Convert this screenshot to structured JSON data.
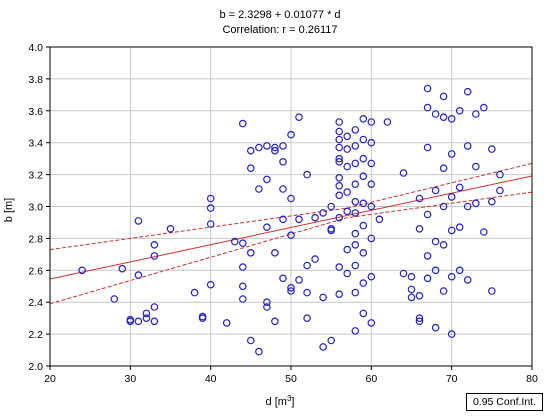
{
  "chart_data": {
    "type": "scatter",
    "title_lines": [
      "b = 2.3298 + 0.01077 * d",
      "Correlation: r = 0.26117"
    ],
    "xlabel": "d [m",
    "xlabel_sup": "3",
    "xlabel_end": "]",
    "ylabel": "b [m]",
    "xlim": [
      20,
      80
    ],
    "ylim": [
      2.0,
      4.0
    ],
    "xticks": [
      "20",
      "30",
      "40",
      "50",
      "60",
      "70",
      "80"
    ],
    "yticks": [
      "2.0",
      "2.2",
      "2.4",
      "2.6",
      "2.8",
      "3.0",
      "3.2",
      "3.4",
      "3.6",
      "3.8",
      "4.0"
    ],
    "grid": true,
    "legend": "0.95 Conf.Int.",
    "regression": {
      "intercept": 2.3298,
      "slope": 0.01077
    },
    "confidence_band": {
      "upper": [
        [
          20,
          2.73
        ],
        [
          57,
          2.99
        ],
        [
          80,
          3.27
        ]
      ],
      "lower": [
        [
          20,
          2.39
        ],
        [
          57,
          2.93
        ],
        [
          80,
          3.09
        ]
      ]
    },
    "colors": {
      "points": "#2222cc",
      "fit_line": "#d03030",
      "grid": "#c8c8c8"
    },
    "points": [
      [
        24,
        2.6
      ],
      [
        28,
        2.42
      ],
      [
        29,
        2.61
      ],
      [
        30,
        2.28
      ],
      [
        30,
        2.29
      ],
      [
        31,
        2.28
      ],
      [
        31,
        2.91
      ],
      [
        31,
        2.57
      ],
      [
        32,
        2.3
      ],
      [
        32,
        2.33
      ],
      [
        33,
        2.28
      ],
      [
        33,
        2.37
      ],
      [
        33,
        2.69
      ],
      [
        33,
        2.76
      ],
      [
        35,
        2.86
      ],
      [
        38,
        2.46
      ],
      [
        39,
        2.3
      ],
      [
        39,
        2.31
      ],
      [
        40,
        2.99
      ],
      [
        40,
        3.05
      ],
      [
        40,
        2.51
      ],
      [
        40,
        2.89
      ],
      [
        42,
        2.27
      ],
      [
        43,
        2.78
      ],
      [
        44,
        2.62
      ],
      [
        44,
        2.77
      ],
      [
        44,
        3.52
      ],
      [
        44,
        2.5
      ],
      [
        44,
        2.42
      ],
      [
        45,
        2.16
      ],
      [
        45,
        3.35
      ],
      [
        45,
        3.24
      ],
      [
        45,
        2.71
      ],
      [
        46,
        3.11
      ],
      [
        46,
        2.09
      ],
      [
        46,
        3.37
      ],
      [
        47,
        2.4
      ],
      [
        47,
        2.37
      ],
      [
        47,
        2.87
      ],
      [
        47,
        3.38
      ],
      [
        47,
        3.17
      ],
      [
        48,
        2.71
      ],
      [
        48,
        2.28
      ],
      [
        48,
        3.37
      ],
      [
        48,
        3.35
      ],
      [
        49,
        2.55
      ],
      [
        49,
        3.11
      ],
      [
        49,
        3.28
      ],
      [
        49,
        2.92
      ],
      [
        49,
        3.38
      ],
      [
        50,
        2.82
      ],
      [
        50,
        2.49
      ],
      [
        50,
        3.45
      ],
      [
        50,
        3.05
      ],
      [
        50,
        2.47
      ],
      [
        51,
        2.92
      ],
      [
        51,
        3.56
      ],
      [
        51,
        2.54
      ],
      [
        52,
        3.2
      ],
      [
        52,
        2.63
      ],
      [
        52,
        2.46
      ],
      [
        52,
        2.3
      ],
      [
        53,
        2.93
      ],
      [
        53,
        2.67
      ],
      [
        54,
        2.96
      ],
      [
        54,
        2.12
      ],
      [
        54,
        2.43
      ],
      [
        55,
        2.86
      ],
      [
        55,
        2.16
      ],
      [
        55,
        3.0
      ],
      [
        55,
        2.85
      ],
      [
        56,
        2.93
      ],
      [
        56,
        2.62
      ],
      [
        56,
        2.45
      ],
      [
        56,
        3.07
      ],
      [
        56,
        3.13
      ],
      [
        56,
        3.18
      ],
      [
        56,
        3.28
      ],
      [
        56,
        3.3
      ],
      [
        56,
        3.37
      ],
      [
        56,
        3.42
      ],
      [
        56,
        3.47
      ],
      [
        56,
        3.53
      ],
      [
        57,
        2.58
      ],
      [
        57,
        2.73
      ],
      [
        57,
        2.97
      ],
      [
        57,
        3.09
      ],
      [
        57,
        3.25
      ],
      [
        57,
        3.36
      ],
      [
        57,
        3.44
      ],
      [
        58,
        2.22
      ],
      [
        58,
        2.46
      ],
      [
        58,
        2.63
      ],
      [
        58,
        2.76
      ],
      [
        58,
        2.83
      ],
      [
        58,
        2.96
      ],
      [
        58,
        3.03
      ],
      [
        58,
        3.14
      ],
      [
        58,
        3.27
      ],
      [
        58,
        3.38
      ],
      [
        58,
        3.48
      ],
      [
        59,
        2.33
      ],
      [
        59,
        2.52
      ],
      [
        59,
        2.71
      ],
      [
        59,
        2.88
      ],
      [
        59,
        3.02
      ],
      [
        59,
        3.19
      ],
      [
        59,
        3.3
      ],
      [
        59,
        3.42
      ],
      [
        59,
        3.55
      ],
      [
        60,
        2.27
      ],
      [
        60,
        2.56
      ],
      [
        60,
        2.8
      ],
      [
        60,
        3.0
      ],
      [
        60,
        3.14
      ],
      [
        60,
        3.27
      ],
      [
        60,
        3.4
      ],
      [
        60,
        3.53
      ],
      [
        61,
        2.92
      ],
      [
        62,
        3.53
      ],
      [
        64,
        2.58
      ],
      [
        64,
        3.21
      ],
      [
        65,
        2.48
      ],
      [
        65,
        2.43
      ],
      [
        65,
        2.56
      ],
      [
        66,
        2.3
      ],
      [
        66,
        2.28
      ],
      [
        66,
        2.86
      ],
      [
        66,
        3.05
      ],
      [
        66,
        2.44
      ],
      [
        67,
        3.74
      ],
      [
        67,
        3.62
      ],
      [
        67,
        3.37
      ],
      [
        67,
        2.55
      ],
      [
        67,
        2.69
      ],
      [
        67,
        2.95
      ],
      [
        68,
        3.58
      ],
      [
        68,
        3.1
      ],
      [
        68,
        2.6
      ],
      [
        68,
        2.78
      ],
      [
        68,
        2.24
      ],
      [
        69,
        3.69
      ],
      [
        69,
        3.56
      ],
      [
        69,
        3.24
      ],
      [
        69,
        3.0
      ],
      [
        69,
        2.76
      ],
      [
        69,
        2.47
      ],
      [
        70,
        3.55
      ],
      [
        70,
        3.33
      ],
      [
        70,
        3.06
      ],
      [
        70,
        2.85
      ],
      [
        70,
        2.56
      ],
      [
        70,
        2.2
      ],
      [
        71,
        3.6
      ],
      [
        71,
        3.12
      ],
      [
        71,
        2.87
      ],
      [
        71,
        2.6
      ],
      [
        72,
        3.72
      ],
      [
        72,
        3.38
      ],
      [
        72,
        3.0
      ],
      [
        72,
        2.54
      ],
      [
        73,
        3.58
      ],
      [
        73,
        3.25
      ],
      [
        73,
        3.02
      ],
      [
        74,
        3.62
      ],
      [
        74,
        2.84
      ],
      [
        75,
        3.36
      ],
      [
        75,
        3.03
      ],
      [
        75,
        2.47
      ],
      [
        76,
        3.2
      ],
      [
        76,
        3.1
      ]
    ]
  }
}
